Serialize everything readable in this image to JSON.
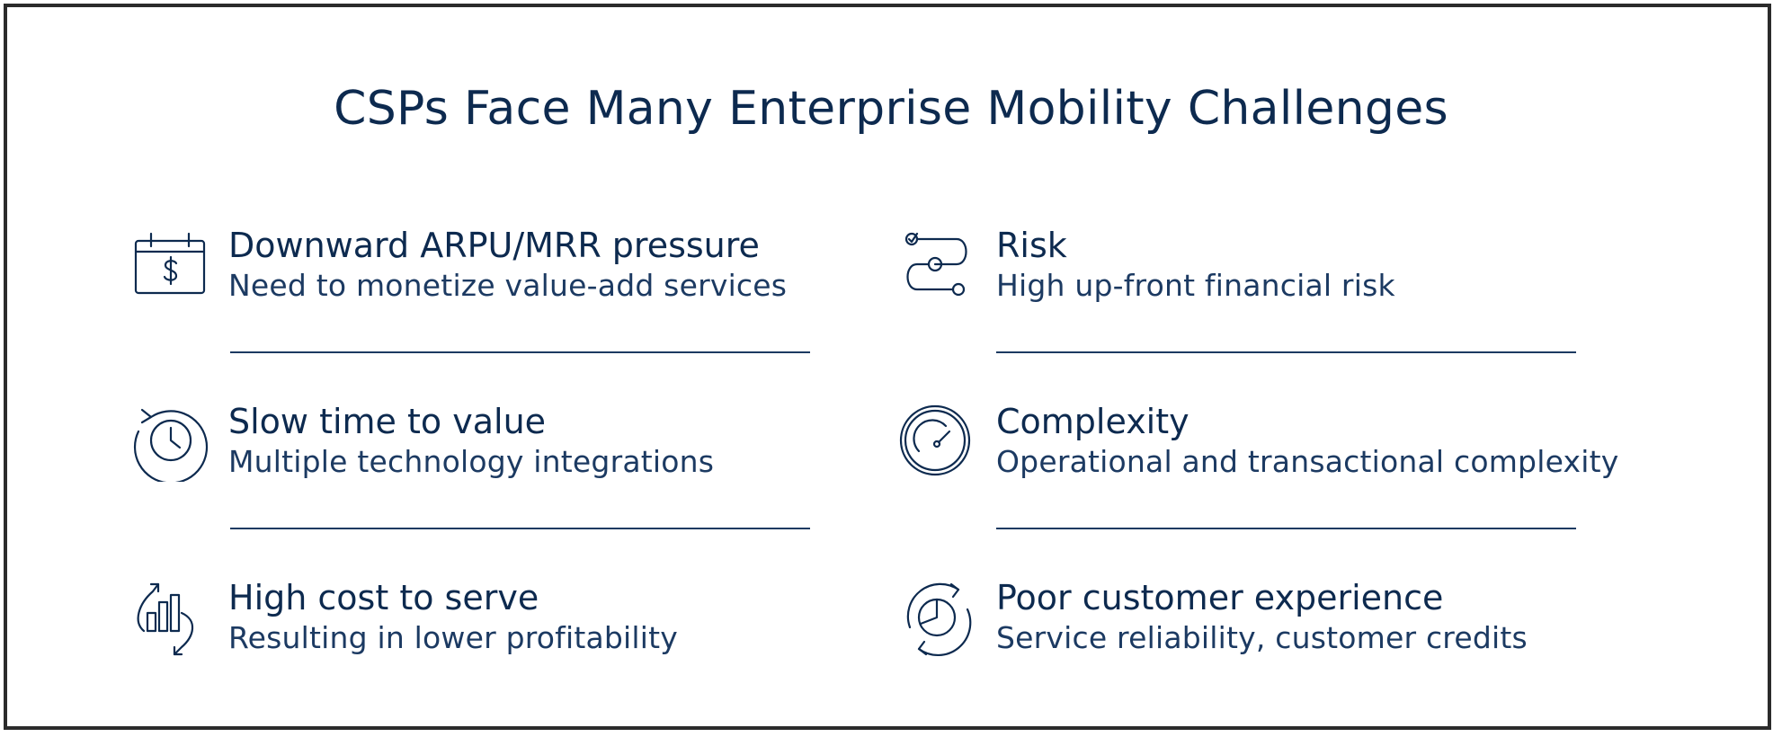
{
  "title": "CSPs Face Many Enterprise Mobility Challenges",
  "colors": {
    "text": "#0d2a4f",
    "border": "#2b2b2b",
    "divider": "#1c3a62"
  },
  "items": [
    {
      "icon": "calendar-dollar-icon",
      "heading": "Downward ARPU/MRR pressure",
      "sub": "Need to monetize value-add services"
    },
    {
      "icon": "route-risk-icon",
      "heading": "Risk",
      "sub": "High up-front financial risk"
    },
    {
      "icon": "clock-history-icon",
      "heading": "Slow time to value",
      "sub": "Multiple technology integrations"
    },
    {
      "icon": "gauge-icon",
      "heading": "Complexity",
      "sub": "Operational and transactional complexity"
    },
    {
      "icon": "cost-chart-icon",
      "heading": "High cost to serve",
      "sub": "Resulting in lower profitability"
    },
    {
      "icon": "refresh-pie-icon",
      "heading": "Poor customer experience",
      "sub": "Service reliability, customer credits"
    }
  ]
}
